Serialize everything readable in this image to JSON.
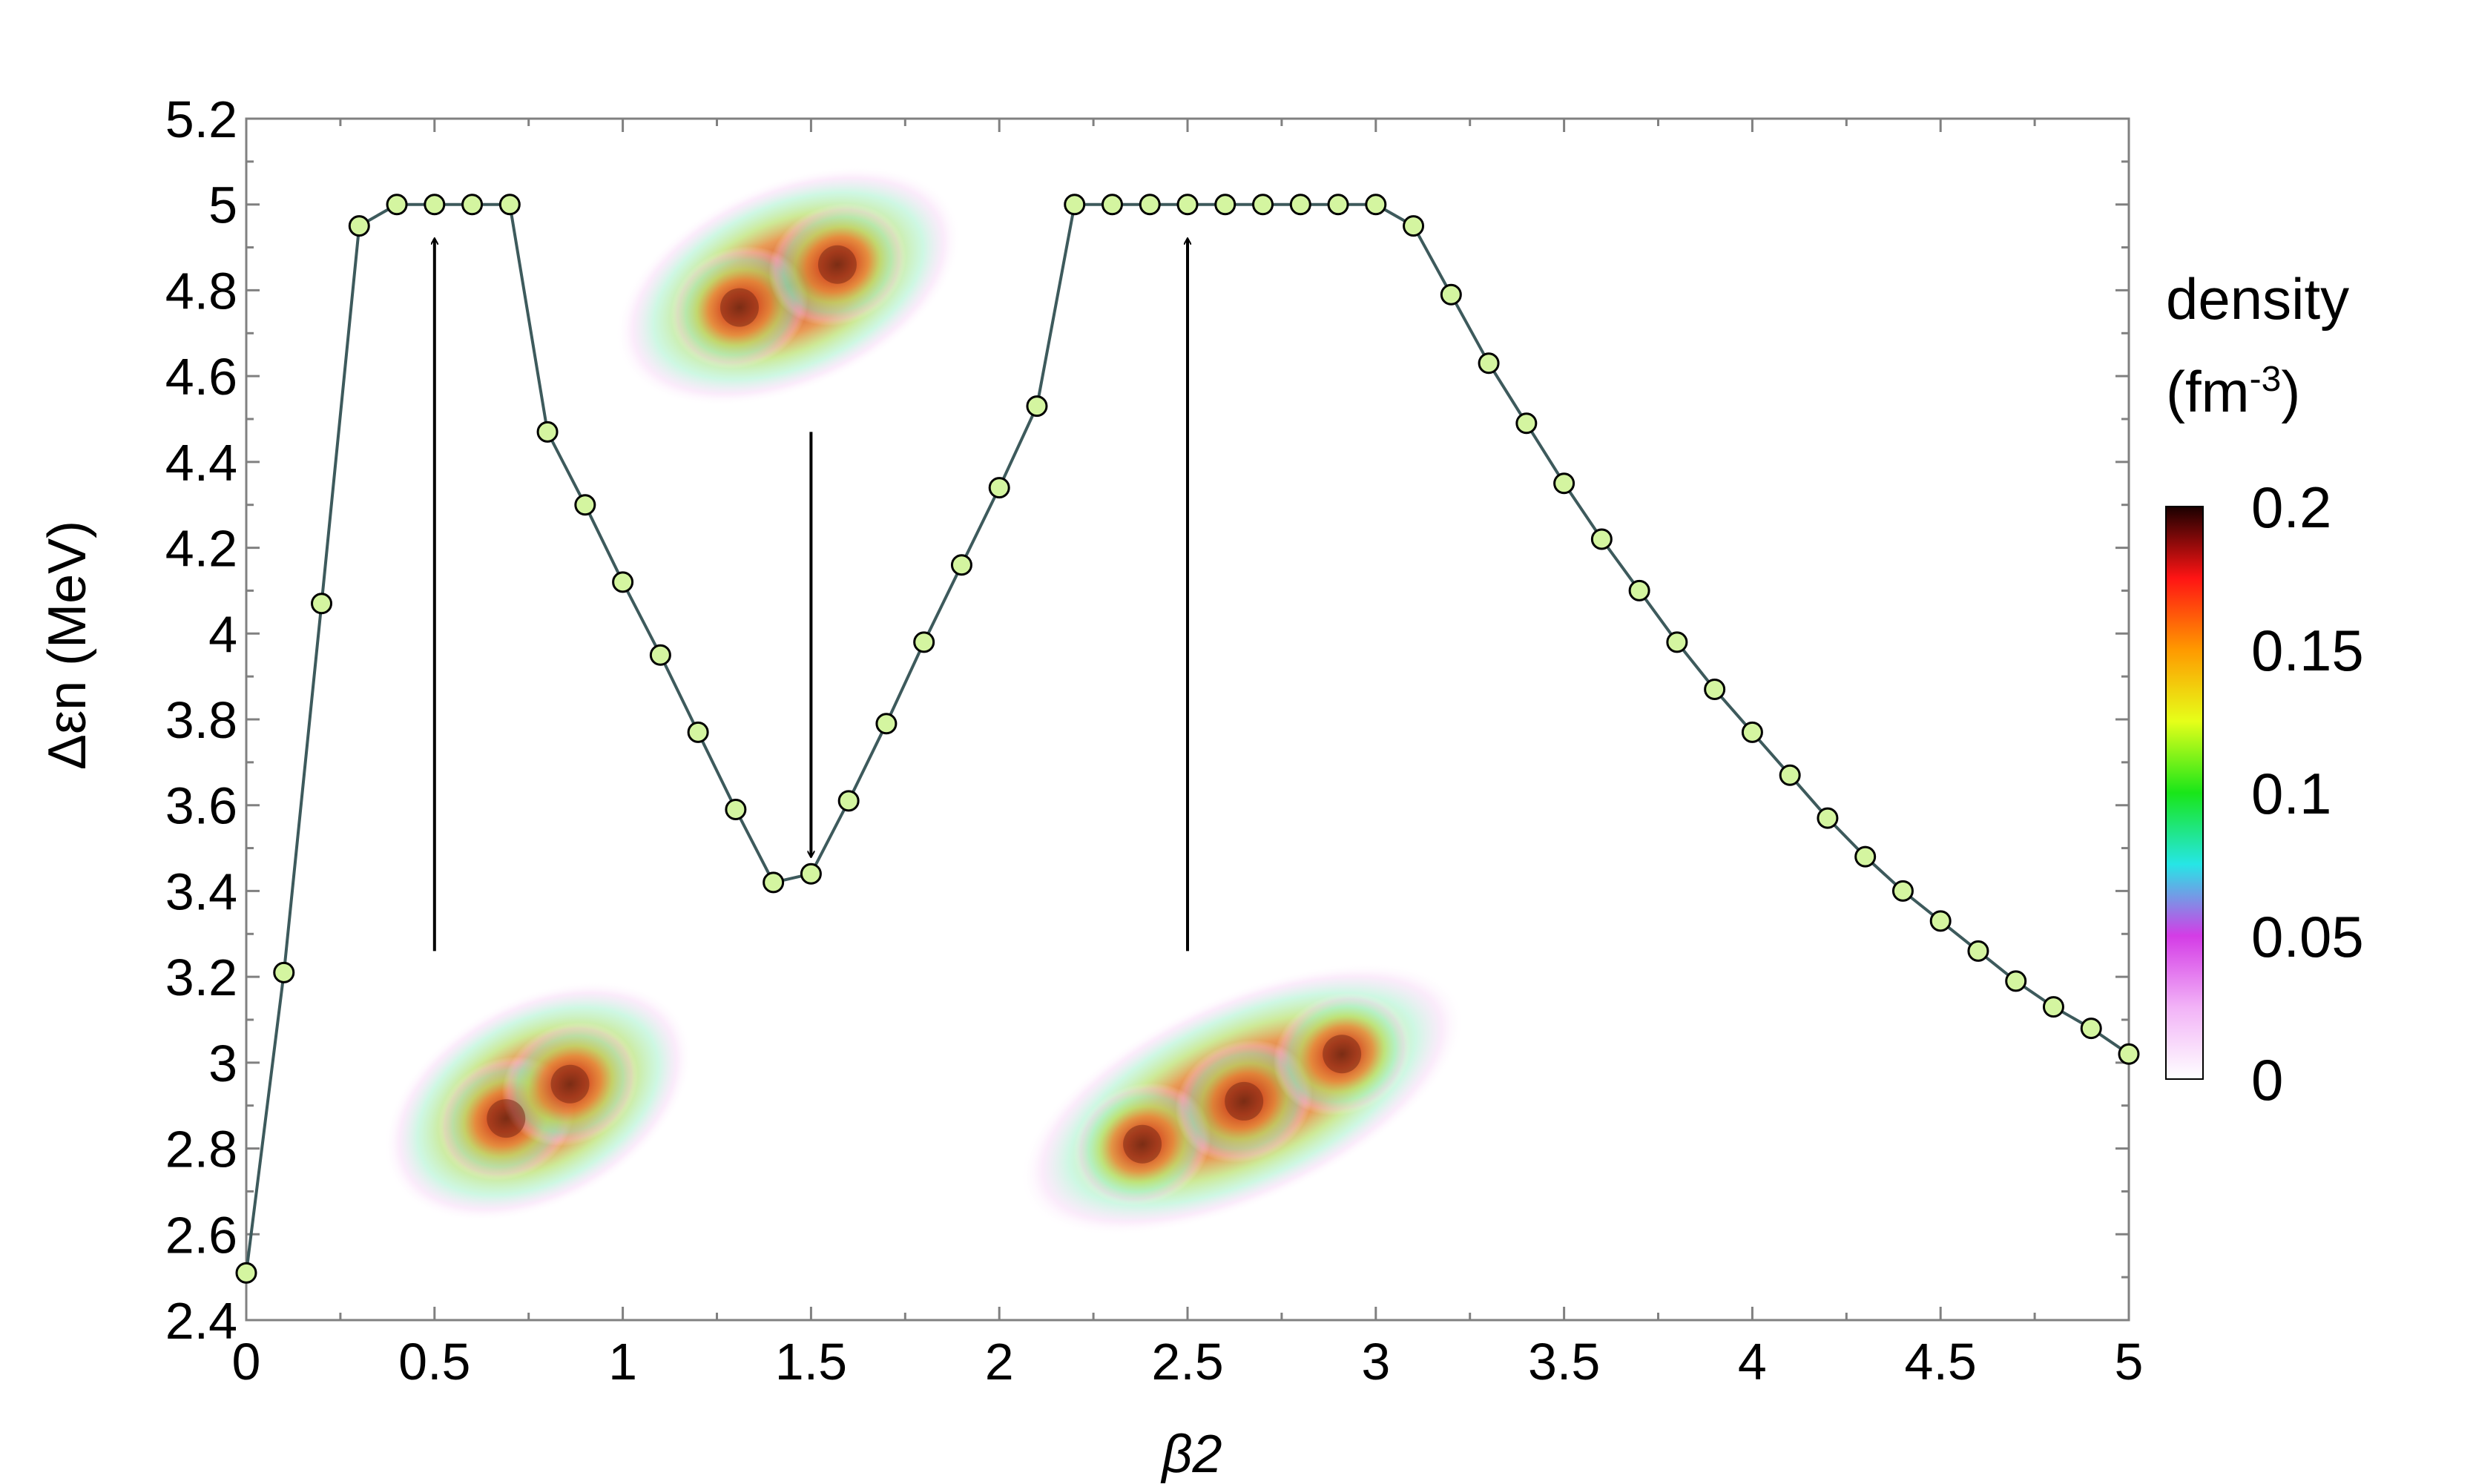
{
  "chart_data": {
    "type": "line",
    "xlabel": "β2",
    "ylabel": "Δεn (MeV)",
    "xlim": [
      0,
      5
    ],
    "ylim": [
      2.4,
      5.2
    ],
    "xticks": [
      "0",
      "0.5",
      "1",
      "1.5",
      "2",
      "2.5",
      "3",
      "3.5",
      "4",
      "4.5",
      "5"
    ],
    "yticks": [
      "2.4",
      "2.6",
      "2.8",
      "3",
      "3.2",
      "3.4",
      "3.6",
      "3.8",
      "4",
      "4.2",
      "4.4",
      "4.6",
      "4.8",
      "5",
      "5.2"
    ],
    "series": [
      {
        "line_color": "#3d5a5c",
        "marker_color": "#d4f5a0",
        "x": [
          0.0,
          0.1,
          0.2,
          0.3,
          0.4,
          0.5,
          0.6,
          0.7,
          0.8,
          0.9,
          1.0,
          1.1,
          1.2,
          1.3,
          1.4,
          1.5,
          1.6,
          1.7,
          1.8,
          1.9,
          2.0,
          2.1,
          2.2,
          2.3,
          2.4,
          2.5,
          2.6,
          2.7,
          2.8,
          2.9,
          3.0,
          3.1,
          3.2,
          3.3,
          3.4,
          3.5,
          3.6,
          3.7,
          3.8,
          3.9,
          4.0,
          4.1,
          4.2,
          4.3,
          4.4,
          4.5,
          4.6,
          4.7,
          4.8,
          4.9,
          5.0
        ],
        "y": [
          2.51,
          3.21,
          4.07,
          4.95,
          5.0,
          5.0,
          5.0,
          5.0,
          4.47,
          4.3,
          4.12,
          3.95,
          3.77,
          3.59,
          3.42,
          3.44,
          3.61,
          3.79,
          3.98,
          4.16,
          4.34,
          4.53,
          5.0,
          5.0,
          5.0,
          5.0,
          5.0,
          5.0,
          5.0,
          5.0,
          5.0,
          4.95,
          4.79,
          4.63,
          4.49,
          4.35,
          4.22,
          4.1,
          3.98,
          3.87,
          3.77,
          3.67,
          3.57,
          3.48,
          3.4,
          3.33,
          3.26,
          3.19,
          3.13,
          3.08,
          3.02
        ]
      }
    ],
    "arrows": [
      {
        "x": 0.5,
        "from_y": 3.26,
        "to_y": 4.92
      },
      {
        "x": 1.5,
        "from_y": 4.47,
        "to_y": 3.48
      },
      {
        "x": 2.5,
        "from_y": 3.26,
        "to_y": 4.92
      }
    ],
    "insets": [
      {
        "at_x": 1.45,
        "at_y": 4.81,
        "blobs": [
          [
            1.31,
            4.76
          ],
          [
            1.57,
            4.86
          ]
        ]
      },
      {
        "at_x": 0.77,
        "at_y": 2.91,
        "blobs": [
          [
            0.69,
            2.87
          ],
          [
            0.86,
            2.95
          ]
        ]
      },
      {
        "at_x": 2.63,
        "at_y": 2.91,
        "blobs": [
          [
            2.38,
            2.81
          ],
          [
            2.65,
            2.91
          ],
          [
            2.91,
            3.02
          ]
        ]
      }
    ],
    "colorbar": {
      "title_line1": "density",
      "title_line2_base": "(fm",
      "title_line2_sup": "-3",
      "title_line2_end": ")",
      "ticks": [
        "0",
        "0.05",
        "0.1",
        "0.15",
        "0.2"
      ],
      "min": 0,
      "max": 0.2,
      "colors": [
        "#ffffff",
        "#f2b3f7",
        "#d43ce6",
        "#26e6e6",
        "#19e619",
        "#e6ff19",
        "#ff9900",
        "#ff1414",
        "#1a0000"
      ]
    }
  }
}
